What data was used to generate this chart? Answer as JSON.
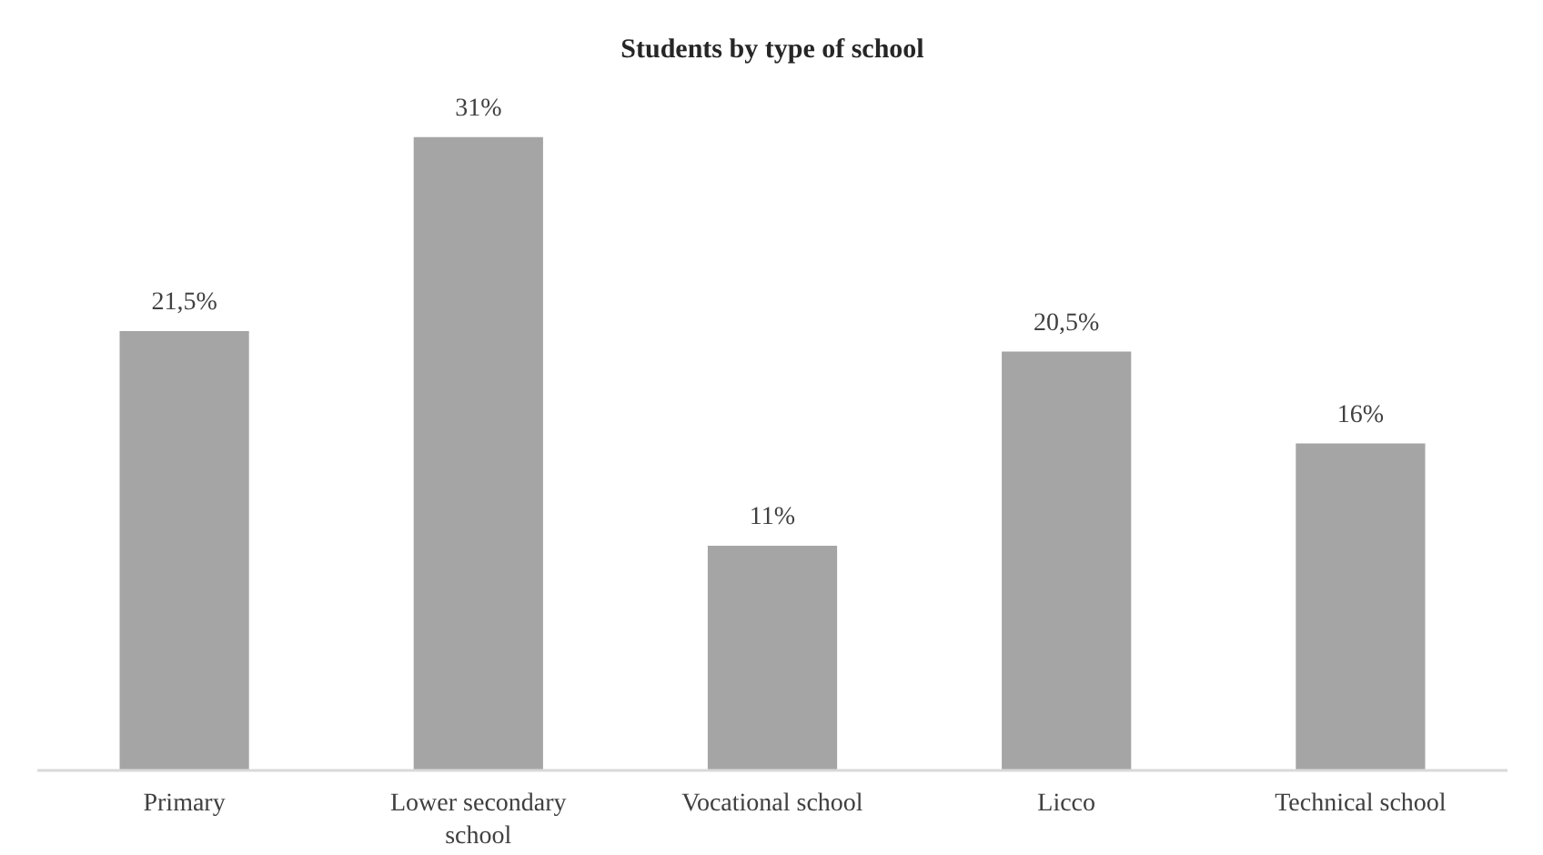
{
  "chart_data": {
    "type": "bar",
    "title": "Students by type of school",
    "categories": [
      "Primary",
      "Lower secondary school",
      "Vocational school",
      "Licco",
      "Technical school"
    ],
    "values": [
      21.5,
      31,
      11,
      20.5,
      16
    ],
    "value_labels": [
      "21,5%",
      "31%",
      "11%",
      "20,5%",
      "16%"
    ],
    "color": "#a5a5a5"
  }
}
